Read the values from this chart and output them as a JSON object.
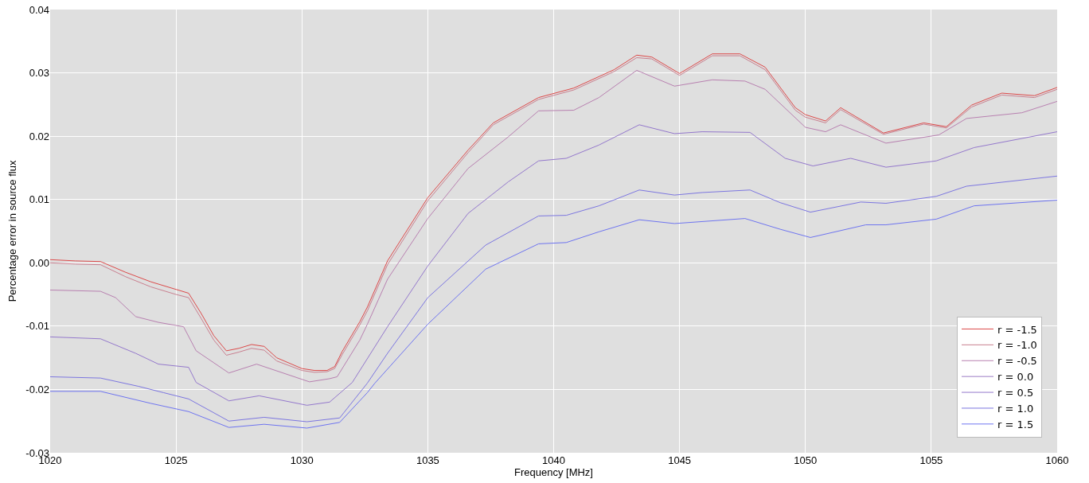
{
  "chart_data": {
    "type": "line",
    "xlabel": "Frequency [MHz]",
    "ylabel": "Percentage error in source flux",
    "xlim": [
      1020,
      1060
    ],
    "xticks": [
      1020,
      1025,
      1030,
      1035,
      1040,
      1045,
      1050,
      1055,
      1060
    ],
    "ylim": [
      -0.03,
      0.04
    ],
    "yticks": [
      -0.03,
      -0.02,
      -0.01,
      {
        "value": 0,
        "label": "0.00"
      },
      0.01,
      0.02,
      0.03,
      0.04
    ],
    "grid": true,
    "legend": "bottom right",
    "marker": "none",
    "line_style": "solid",
    "series": [
      {
        "name": "r = -1.5",
        "color": "#dc4a4a",
        "x": [
          1020,
          1021,
          1022,
          1023,
          1024,
          1025,
          1025.5,
          1026,
          1026.5,
          1027,
          1027.5,
          1028,
          1028.5,
          1029,
          1030,
          1030.5,
          1031,
          1031.3,
          1031.6,
          1032.3,
          1032.6,
          1033.4,
          1035,
          1036.6,
          1037.6,
          1039.4,
          1040.8,
          1042.4,
          1043.3,
          1043.9,
          1045,
          1046.3,
          1047.4,
          1048.4,
          1049.6,
          1050,
          1050.8,
          1051.4,
          1053.1,
          1054.7,
          1055.6,
          1056.6,
          1057.8,
          1059.1,
          1060
        ],
        "values": [
          0.0005,
          0.0003,
          0.0002,
          -0.0015,
          -0.003,
          -0.0042,
          -0.0048,
          -0.008,
          -0.0115,
          -0.0139,
          -0.0135,
          -0.0129,
          -0.0132,
          -0.015,
          -0.0167,
          -0.017,
          -0.017,
          -0.0164,
          -0.014,
          -0.0093,
          -0.007,
          0.0003,
          0.0103,
          0.0178,
          0.0221,
          0.0261,
          0.0276,
          0.0305,
          0.0328,
          0.0325,
          0.0299,
          0.033,
          0.033,
          0.0309,
          0.0245,
          0.0234,
          0.0224,
          0.0245,
          0.0205,
          0.0221,
          0.0215,
          0.0249,
          0.0268,
          0.0264,
          0.0277
        ]
      },
      {
        "name": "r = -1.0",
        "color": "#c98090",
        "x": [
          1020,
          1021,
          1022,
          1023,
          1024,
          1025,
          1025.5,
          1026,
          1026.5,
          1027,
          1027.5,
          1028,
          1028.5,
          1029,
          1030,
          1030.5,
          1031,
          1031.3,
          1031.6,
          1032.3,
          1032.6,
          1033.4,
          1035,
          1036.6,
          1037.6,
          1039.4,
          1040.8,
          1042.4,
          1043.3,
          1043.9,
          1045,
          1046.3,
          1047.4,
          1048.4,
          1049.6,
          1050,
          1050.8,
          1051.4,
          1053.1,
          1054.7,
          1055.6,
          1056.6,
          1057.8,
          1059.1,
          1060
        ],
        "values": [
          0,
          -0.0002,
          -0.0003,
          -0.0022,
          -0.0038,
          -0.005,
          -0.0055,
          -0.0088,
          -0.0122,
          -0.0146,
          -0.0141,
          -0.0135,
          -0.0138,
          -0.0155,
          -0.017,
          -0.0173,
          -0.0172,
          -0.0167,
          -0.0145,
          -0.0098,
          -0.0076,
          -0.0003,
          0.0098,
          0.0174,
          0.0218,
          0.0258,
          0.0273,
          0.0302,
          0.0324,
          0.0322,
          0.0296,
          0.0327,
          0.0327,
          0.0305,
          0.0241,
          0.023,
          0.0221,
          0.0242,
          0.0203,
          0.0219,
          0.0213,
          0.0246,
          0.0265,
          0.0261,
          0.0274
        ]
      },
      {
        "name": "r = -0.5",
        "color": "#b880b0",
        "x": [
          1020,
          1022,
          1022.6,
          1023.4,
          1024.3,
          1025.3,
          1025.8,
          1027.1,
          1028.2,
          1030.3,
          1031.1,
          1031.4,
          1032.3,
          1032.6,
          1033.4,
          1035,
          1036.6,
          1038.2,
          1039.4,
          1040.8,
          1041.8,
          1043.3,
          1044.8,
          1046.3,
          1047.6,
          1048.4,
          1050,
          1050.8,
          1051.4,
          1053.2,
          1055.3,
          1056.4,
          1058.6,
          1060
        ],
        "values": [
          -0.0043,
          -0.0045,
          -0.0055,
          -0.0085,
          -0.0094,
          -0.0101,
          -0.0139,
          -0.0174,
          -0.016,
          -0.0188,
          -0.0183,
          -0.018,
          -0.0122,
          -0.0097,
          -0.0026,
          0.007,
          0.0149,
          0.0199,
          0.024,
          0.0241,
          0.0261,
          0.0304,
          0.0279,
          0.0289,
          0.0287,
          0.0274,
          0.0214,
          0.0207,
          0.0218,
          0.0189,
          0.0202,
          0.0228,
          0.0237,
          0.0255
        ]
      },
      {
        "name": "r = 0.0",
        "color": "#9c7cc4"
      },
      {
        "name": "r = 0.5",
        "color": "#9478cc",
        "x": [
          1020,
          1022,
          1023.4,
          1024.3,
          1025.5,
          1025.8,
          1027.1,
          1028.3,
          1030.2,
          1031.1,
          1032,
          1033.4,
          1035,
          1036.6,
          1038.2,
          1039.4,
          1040.5,
          1041.8,
          1043.4,
          1044.8,
          1045.9,
          1047.8,
          1049.2,
          1050.3,
          1051.8,
          1053.2,
          1055.2,
          1056.7,
          1060
        ],
        "values": [
          -0.0117,
          -0.012,
          -0.0143,
          -0.016,
          -0.0165,
          -0.0189,
          -0.0218,
          -0.021,
          -0.0225,
          -0.022,
          -0.0189,
          -0.0101,
          -0.0005,
          0.0078,
          0.0128,
          0.0161,
          0.0165,
          0.0186,
          0.0218,
          0.0204,
          0.0207,
          0.0206,
          0.0165,
          0.0153,
          0.0165,
          0.0151,
          0.0161,
          0.0182,
          0.0207
        ]
      },
      {
        "name": "r = 1.0",
        "color": "#7c76e0",
        "x": [
          1020,
          1022,
          1023.5,
          1024.5,
          1025.5,
          1027.1,
          1028.5,
          1030.2,
          1031.5,
          1032.6,
          1033.4,
          1035,
          1037.3,
          1039.4,
          1040.5,
          1041.8,
          1043.4,
          1044.8,
          1045.9,
          1047.8,
          1049,
          1050.2,
          1052.2,
          1053.2,
          1055.2,
          1056.4,
          1060
        ],
        "values": [
          -0.018,
          -0.0182,
          -0.0195,
          -0.0205,
          -0.0215,
          -0.025,
          -0.0244,
          -0.0251,
          -0.0245,
          -0.019,
          -0.0143,
          -0.0055,
          0.0028,
          0.0074,
          0.0075,
          0.009,
          0.0115,
          0.0107,
          0.0111,
          0.0115,
          0.0095,
          0.008,
          0.0096,
          0.0094,
          0.0105,
          0.0121,
          0.0137
        ]
      },
      {
        "name": "r = 1.5",
        "color": "#6e74f0",
        "x": [
          1020,
          1022,
          1024,
          1025.5,
          1027.1,
          1028.5,
          1030.2,
          1031.5,
          1032.6,
          1032.9,
          1035,
          1037.3,
          1039.4,
          1040.5,
          1041.8,
          1043.4,
          1044.8,
          1047.6,
          1049,
          1050.2,
          1052.4,
          1053.2,
          1055.2,
          1056.7,
          1060
        ],
        "values": [
          -0.0203,
          -0.0203,
          -0.0222,
          -0.0235,
          -0.026,
          -0.0255,
          -0.0261,
          -0.0252,
          -0.0205,
          -0.019,
          -0.0097,
          -0.001,
          0.003,
          0.0032,
          0.0049,
          0.0068,
          0.0062,
          0.007,
          0.0053,
          0.004,
          0.006,
          0.006,
          0.0069,
          0.009,
          0.0099
        ]
      }
    ]
  }
}
